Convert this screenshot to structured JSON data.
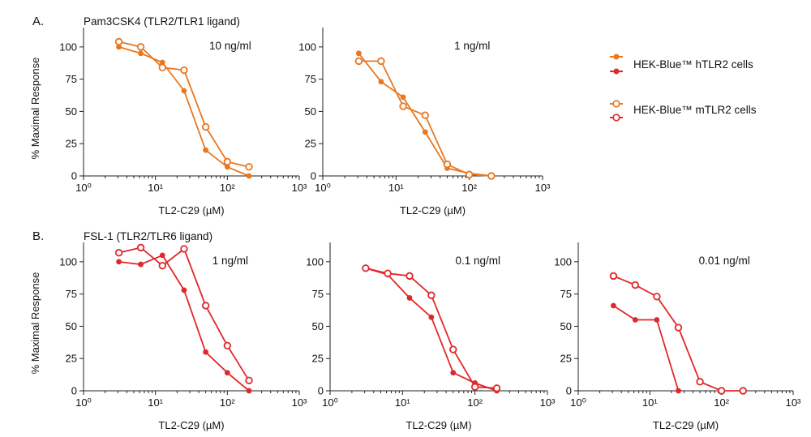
{
  "panels": [
    {
      "letter": "A.",
      "subtitle": "Pam3CSK4 (TLR2/TLR1 ligand)"
    },
    {
      "letter": "B.",
      "subtitle": "FSL-1 (TLR2/TLR6 ligand)"
    }
  ],
  "legend": {
    "items": [
      {
        "label": "HEK-Blue™ hTLR2 cells",
        "colors": [
          "#e87722",
          "#e0282a"
        ],
        "marker": "filled"
      },
      {
        "label": "HEK-Blue™ mTLR2 cells",
        "colors": [
          "#e87722",
          "#e0282a"
        ],
        "marker": "open"
      }
    ]
  },
  "colors": {
    "orange": "#e87722",
    "red": "#e0282a"
  },
  "chart_data": [
    {
      "type": "line",
      "row": "A",
      "title": "10 ng/ml",
      "color": "#e87722",
      "xlabel": "TL2-C29 (µM)",
      "ylabel": "% Maximal Response",
      "xscale": "log",
      "xlim": [
        1,
        1000
      ],
      "ylim": [
        0,
        115
      ],
      "yticks": [
        0,
        25,
        50,
        75,
        100
      ],
      "series": [
        {
          "name": "HEK-Blue™ hTLR2 cells",
          "marker": "filled",
          "x": [
            3.1,
            6.25,
            12.5,
            25,
            50,
            100,
            200
          ],
          "y": [
            100,
            95,
            88,
            66,
            20,
            7,
            0
          ]
        },
        {
          "name": "HEK-Blue™ mTLR2 cells",
          "marker": "open",
          "x": [
            3.1,
            6.25,
            12.5,
            25,
            50,
            100,
            200
          ],
          "y": [
            104,
            100,
            84,
            82,
            38,
            11,
            7
          ]
        }
      ]
    },
    {
      "type": "line",
      "row": "A",
      "title": "1 ng/ml",
      "color": "#e87722",
      "xlabel": "TL2-C29 (µM)",
      "ylabel": "",
      "xscale": "log",
      "xlim": [
        1,
        1000
      ],
      "ylim": [
        0,
        115
      ],
      "yticks": [
        0,
        25,
        50,
        75,
        100
      ],
      "series": [
        {
          "name": "HEK-Blue™ hTLR2 cells",
          "marker": "filled",
          "x": [
            3.1,
            6.25,
            12.5,
            25,
            50,
            100,
            200
          ],
          "y": [
            95,
            73,
            61,
            34,
            6,
            2,
            0
          ]
        },
        {
          "name": "HEK-Blue™ mTLR2 cells",
          "marker": "open",
          "x": [
            3.1,
            6.25,
            12.5,
            25,
            50,
            100,
            200
          ],
          "y": [
            89,
            89,
            54,
            47,
            9,
            1,
            0
          ]
        }
      ]
    },
    {
      "type": "line",
      "row": "B",
      "title": "1 ng/ml",
      "color": "#e0282a",
      "xlabel": "TL2-C29 (µM)",
      "ylabel": "% Maximal Response",
      "xscale": "log",
      "xlim": [
        1,
        1000
      ],
      "ylim": [
        0,
        115
      ],
      "yticks": [
        0,
        25,
        50,
        75,
        100
      ],
      "series": [
        {
          "name": "HEK-Blue™ hTLR2 cells",
          "marker": "filled",
          "x": [
            3.1,
            6.25,
            12.5,
            25,
            50,
            100,
            200
          ],
          "y": [
            100,
            98,
            105,
            78,
            30,
            14,
            0
          ]
        },
        {
          "name": "HEK-Blue™ mTLR2 cells",
          "marker": "open",
          "x": [
            3.1,
            6.25,
            12.5,
            25,
            50,
            100,
            200
          ],
          "y": [
            107,
            111,
            97,
            110,
            66,
            35,
            8
          ]
        }
      ]
    },
    {
      "type": "line",
      "row": "B",
      "title": "0.1 ng/ml",
      "color": "#e0282a",
      "xlabel": "TL2-C29 (µM)",
      "ylabel": "",
      "xscale": "log",
      "xlim": [
        1,
        1000
      ],
      "ylim": [
        0,
        115
      ],
      "yticks": [
        0,
        25,
        50,
        75,
        100
      ],
      "series": [
        {
          "name": "HEK-Blue™ hTLR2 cells",
          "marker": "filled",
          "x": [
            3.1,
            6.25,
            12.5,
            25,
            50,
            100,
            200
          ],
          "y": [
            95,
            90,
            72,
            57,
            14,
            6,
            0
          ]
        },
        {
          "name": "HEK-Blue™ mTLR2 cells",
          "marker": "open",
          "x": [
            3.1,
            6.25,
            12.5,
            25,
            50,
            100,
            200
          ],
          "y": [
            95,
            91,
            89,
            74,
            32,
            3,
            2
          ]
        }
      ]
    },
    {
      "type": "line",
      "row": "B",
      "title": "0.01 ng/ml",
      "color": "#e0282a",
      "xlabel": "TL2-C29 (µM)",
      "ylabel": "",
      "xscale": "log",
      "xlim": [
        1,
        1000
      ],
      "ylim": [
        0,
        115
      ],
      "yticks": [
        0,
        25,
        50,
        75,
        100
      ],
      "series": [
        {
          "name": "HEK-Blue™ hTLR2 cells",
          "marker": "filled",
          "x": [
            3.1,
            6.25,
            12.5,
            25
          ],
          "y": [
            66,
            55,
            55,
            0
          ]
        },
        {
          "name": "HEK-Blue™ mTLR2 cells",
          "marker": "open",
          "x": [
            3.1,
            6.25,
            12.5,
            25,
            50,
            100,
            200
          ],
          "y": [
            89,
            82,
            73,
            49,
            7,
            0,
            0
          ]
        }
      ]
    }
  ]
}
